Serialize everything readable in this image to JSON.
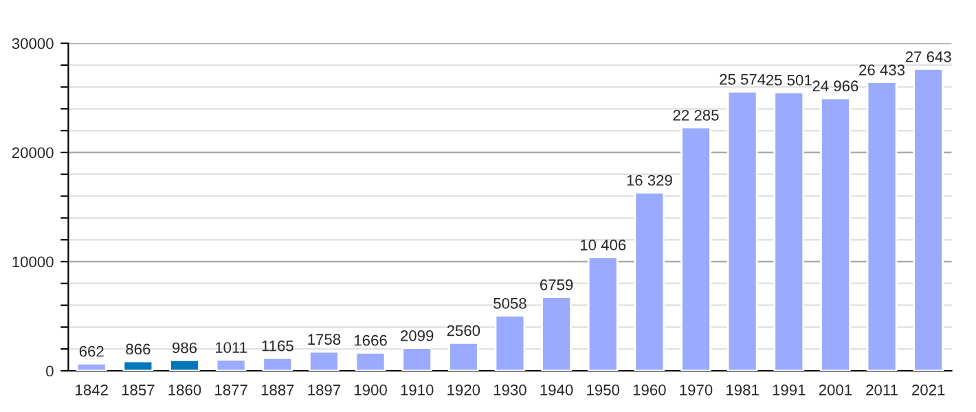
{
  "chart_data": {
    "type": "bar",
    "categories": [
      "1842",
      "1857",
      "1860",
      "1877",
      "1887",
      "1897",
      "1900",
      "1910",
      "1920",
      "1930",
      "1940",
      "1950",
      "1960",
      "1970",
      "1981",
      "1991",
      "2001",
      "2011",
      "2021"
    ],
    "values": [
      662,
      866,
      986,
      1011,
      1165,
      1758,
      1666,
      2099,
      2560,
      5058,
      6759,
      10406,
      16329,
      22285,
      25574,
      25501,
      24966,
      26433,
      27643
    ],
    "colors": [
      "#99aaff",
      "#0077bb",
      "#0077bb",
      "#99aaff",
      "#99aaff",
      "#99aaff",
      "#99aaff",
      "#99aaff",
      "#99aaff",
      "#99aaff",
      "#99aaff",
      "#99aaff",
      "#99aaff",
      "#99aaff",
      "#99aaff",
      "#99aaff",
      "#99aaff",
      "#99aaff",
      "#99aaff"
    ],
    "value_labels": [
      "662",
      "866",
      "986",
      "1011",
      "1165",
      "1758",
      "1666",
      "2099",
      "2560",
      "5058",
      "6759",
      "10 406",
      "16 329",
      "22 285",
      "25 574",
      "25 501",
      "24 966",
      "26 433",
      "27 643"
    ],
    "ylim": [
      0,
      30000
    ],
    "yticks": [
      0,
      {
        "value": 2000,
        "label": null
      },
      {
        "value": 4000,
        "label": null
      },
      {
        "value": 6000,
        "label": null
      },
      {
        "value": 8000,
        "label": null
      },
      10000,
      {
        "value": 12000,
        "label": null
      },
      {
        "value": 14000,
        "label": null
      },
      {
        "value": 16000,
        "label": null
      },
      {
        "value": 18000,
        "label": null
      },
      20000,
      {
        "value": 22000,
        "label": null
      },
      {
        "value": 24000,
        "label": null
      },
      {
        "value": 26000,
        "label": null
      },
      {
        "value": 28000,
        "label": null
      },
      30000
    ],
    "grid": "y"
  }
}
